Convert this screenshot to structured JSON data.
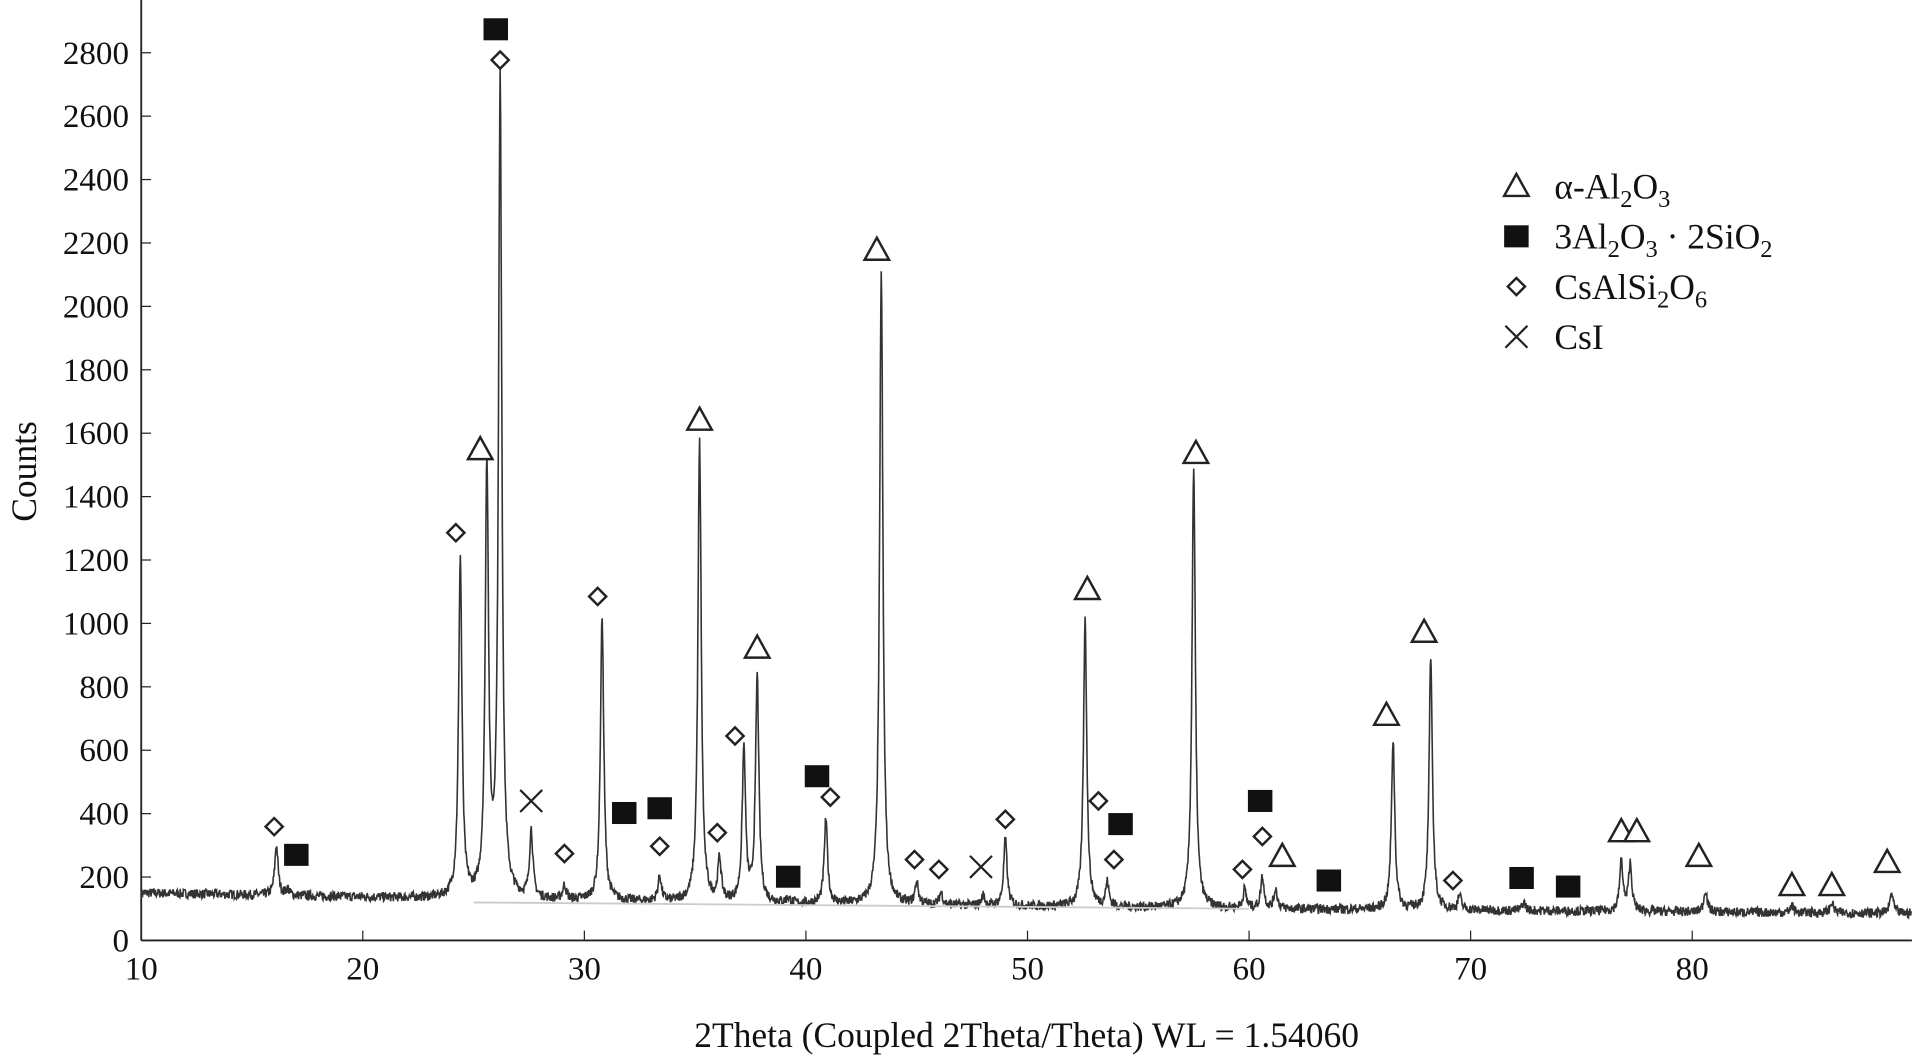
{
  "chart_data": {
    "type": "line",
    "title": "",
    "xlabel": "2Theta (Coupled 2Theta/Theta) WL = 1.54060",
    "ylabel": "Counts",
    "xlim": [
      10,
      90
    ],
    "ylim": [
      0,
      2900
    ],
    "xticks": [
      10,
      20,
      30,
      40,
      50,
      60,
      70,
      80
    ],
    "yticks": [
      0,
      200,
      400,
      600,
      800,
      1000,
      1200,
      1400,
      1600,
      1800,
      2000,
      2200,
      2400,
      2600,
      2800
    ],
    "grid": false,
    "legend_position": "top-right",
    "baseline": [
      [
        10,
        150
      ],
      [
        25,
        130
      ],
      [
        40,
        115
      ],
      [
        60,
        100
      ],
      [
        90,
        85
      ]
    ],
    "peaks": [
      [
        16.1,
        300
      ],
      [
        16.6,
        160
      ],
      [
        24.4,
        1200
      ],
      [
        25.6,
        1480
      ],
      [
        26.2,
        2700
      ],
      [
        27.6,
        340
      ],
      [
        29.1,
        170
      ],
      [
        30.8,
        1020
      ],
      [
        33.4,
        200
      ],
      [
        35.2,
        1570
      ],
      [
        36.1,
        250
      ],
      [
        37.2,
        600
      ],
      [
        37.8,
        830
      ],
      [
        39.2,
        130
      ],
      [
        40.9,
        380
      ],
      [
        43.4,
        2110
      ],
      [
        45.0,
        180
      ],
      [
        46.1,
        150
      ],
      [
        48.0,
        140
      ],
      [
        49.0,
        320
      ],
      [
        52.6,
        1010
      ],
      [
        53.6,
        180
      ],
      [
        57.5,
        1490
      ],
      [
        59.8,
        160
      ],
      [
        60.6,
        200
      ],
      [
        61.2,
        160
      ],
      [
        66.5,
        630
      ],
      [
        68.2,
        890
      ],
      [
        69.5,
        140
      ],
      [
        72.4,
        120
      ],
      [
        76.8,
        250
      ],
      [
        77.2,
        240
      ],
      [
        80.6,
        160
      ],
      [
        84.5,
        110
      ],
      [
        86.3,
        120
      ],
      [
        89.0,
        150
      ]
    ],
    "legend": [
      {
        "symbol": "triangle",
        "label": "α-Al",
        "sub1": "2",
        "mid": "O",
        "sub2": "3",
        "tail": ""
      },
      {
        "symbol": "square",
        "label": "3Al",
        "sub1": "2",
        "mid": "O",
        "sub2": "3",
        "tail": " · 2SiO",
        "sub3": "2"
      },
      {
        "symbol": "diamond",
        "label": "CsAlSi",
        "sub1": "2",
        "mid": "O",
        "sub2": "6",
        "tail": ""
      },
      {
        "symbol": "cross",
        "label": "CsI"
      }
    ],
    "markers": {
      "triangle": [
        [
          25.3,
          1549
        ],
        [
          35.2,
          1642
        ],
        [
          37.8,
          923
        ],
        [
          43.2,
          2178
        ],
        [
          52.7,
          1108
        ],
        [
          57.6,
          1537
        ],
        [
          66.2,
          711
        ],
        [
          67.9,
          973
        ],
        [
          61.5,
          266
        ],
        [
          76.8,
          344
        ],
        [
          77.5,
          344
        ],
        [
          80.3,
          266
        ],
        [
          84.5,
          174
        ],
        [
          86.3,
          174
        ],
        [
          88.8,
          247
        ]
      ],
      "square": [
        [
          26.0,
          2874
        ],
        [
          17.0,
          270
        ],
        [
          31.8,
          402
        ],
        [
          33.4,
          417
        ],
        [
          39.2,
          201
        ],
        [
          40.5,
          518
        ],
        [
          54.2,
          367
        ],
        [
          60.5,
          440
        ],
        [
          63.6,
          189
        ],
        [
          72.3,
          197
        ],
        [
          74.4,
          170
        ]
      ],
      "diamond": [
        [
          16.0,
          359
        ],
        [
          26.2,
          2777
        ],
        [
          24.2,
          1286
        ],
        [
          29.1,
          274
        ],
        [
          30.6,
          1085
        ],
        [
          33.4,
          297
        ],
        [
          36.8,
          645
        ],
        [
          36.0,
          340
        ],
        [
          41.1,
          452
        ],
        [
          44.9,
          255
        ],
        [
          46.0,
          224
        ],
        [
          49.0,
          382
        ],
        [
          53.2,
          440
        ],
        [
          53.9,
          255
        ],
        [
          59.7,
          224
        ],
        [
          60.6,
          328
        ],
        [
          69.2,
          189
        ]
      ],
      "cross": [
        [
          27.6,
          440
        ],
        [
          47.9,
          232
        ]
      ]
    }
  }
}
